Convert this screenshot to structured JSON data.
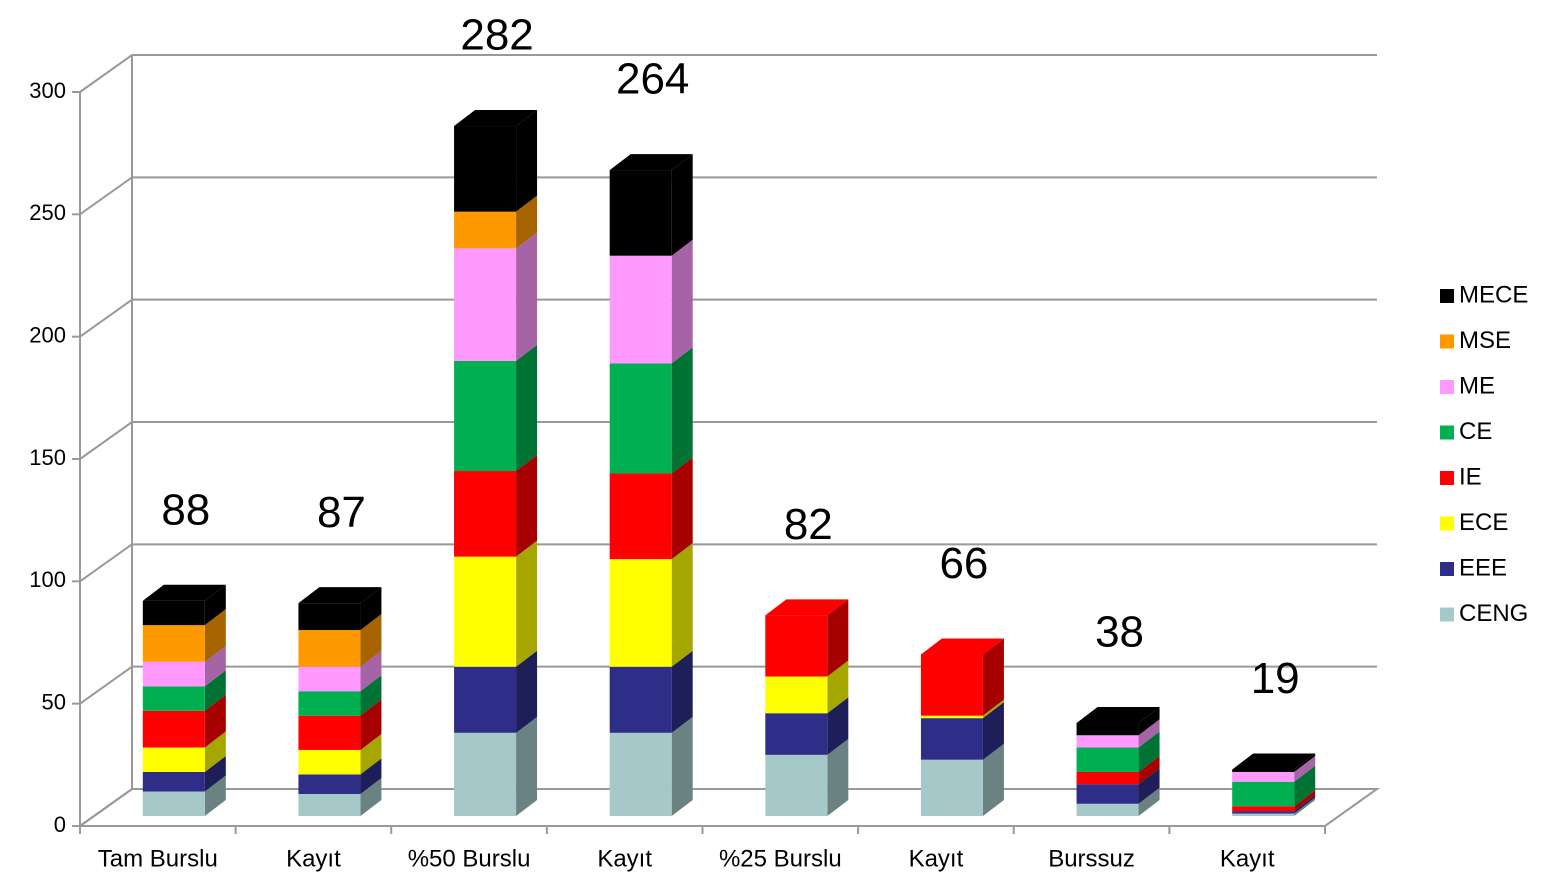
{
  "chart_data": {
    "type": "bar",
    "stacked": true,
    "categories": [
      "Tam Burslu",
      "Kayıt",
      "%50 Burslu",
      "Kayıt",
      "%25 Burslu",
      "Kayıt",
      "Burssuz",
      "Kayıt"
    ],
    "totals": [
      88,
      87,
      282,
      264,
      82,
      66,
      38,
      19
    ],
    "ylim": [
      0,
      300
    ],
    "yticks": [
      0,
      50,
      100,
      150,
      200,
      250,
      300
    ],
    "grid": true,
    "legend": "right",
    "series": [
      {
        "name": "CENG",
        "color": "#a5c8c8",
        "values": [
          10,
          9,
          34,
          34,
          25,
          23,
          5,
          1
        ]
      },
      {
        "name": "EEE",
        "color": "#2e2e88",
        "values": [
          8,
          8,
          27,
          27,
          17,
          17,
          8,
          1
        ]
      },
      {
        "name": "ECE",
        "color": "#ffff00",
        "values": [
          10,
          10,
          45,
          44,
          15,
          1,
          0,
          0
        ]
      },
      {
        "name": "IE",
        "color": "#ff0000",
        "values": [
          15,
          14,
          35,
          35,
          25,
          25,
          5,
          2
        ]
      },
      {
        "name": "CE",
        "color": "#00b050",
        "values": [
          10,
          10,
          45,
          45,
          0,
          0,
          10,
          10
        ]
      },
      {
        "name": "ME",
        "color": "#ff99ff",
        "values": [
          10,
          10,
          46,
          44,
          0,
          0,
          5,
          4
        ]
      },
      {
        "name": "MSE",
        "color": "#ff9900",
        "values": [
          15,
          15,
          15,
          0,
          0,
          0,
          0,
          0
        ]
      },
      {
        "name": "MECE",
        "color": "#000000",
        "values": [
          10,
          11,
          35,
          35,
          0,
          0,
          5,
          1
        ]
      }
    ]
  }
}
